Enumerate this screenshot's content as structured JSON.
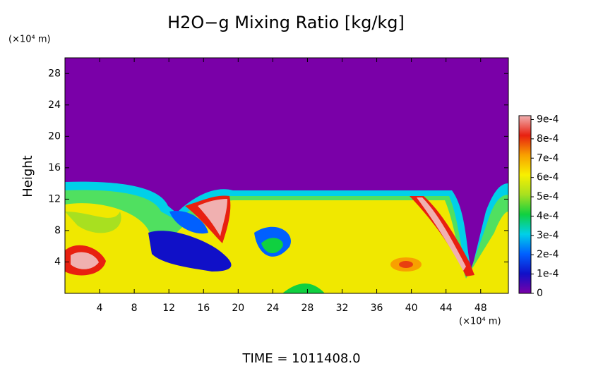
{
  "chart_data": {
    "type": "heatmap",
    "title": "H2O−g Mixing Ratio [kg/kg]",
    "x_unit": "(×10⁴ m)",
    "y_unit": "(×10⁴ m)",
    "y_label": "Height",
    "footer": "TIME  =  1011408.0",
    "xlim": [
      0,
      51.2
    ],
    "xticks": [
      4,
      8,
      12,
      16,
      20,
      24,
      28,
      32,
      36,
      40,
      44,
      48
    ],
    "ylim": [
      0,
      30
    ],
    "yticks": [
      4,
      8,
      12,
      16,
      20,
      24,
      28
    ],
    "colorbar": {
      "colors": [
        "#7a00a8",
        "#1010c8",
        "#0060ff",
        "#00d0e8",
        "#10d040",
        "#a8e020",
        "#f8f000",
        "#f8a000",
        "#e82010",
        "#f0b0b0"
      ],
      "lim": [
        0,
        0.00092
      ],
      "ticks": [
        0,
        {
          "value": 0.0001,
          "label": "1e-4"
        },
        {
          "value": 0.0002,
          "label": "2e-4"
        },
        {
          "value": 0.0003,
          "label": "3e-4"
        },
        {
          "value": 0.0004,
          "label": "4e-4"
        },
        {
          "value": 0.0005,
          "label": "5e-4"
        },
        {
          "value": 0.0006,
          "label": "6e-4"
        },
        {
          "value": 0.0007,
          "label": "7e-4"
        },
        {
          "value": 0.0008,
          "label": "8e-4"
        },
        {
          "value": 0.0009,
          "label": "9e-4"
        }
      ]
    }
  }
}
